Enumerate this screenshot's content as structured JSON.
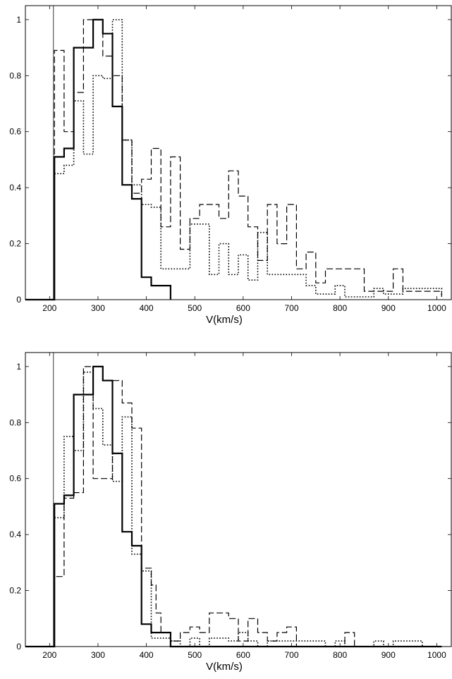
{
  "chart_data": [
    {
      "type": "line",
      "step": true,
      "xlabel": "V(km/s)",
      "ylabel": "",
      "xlim": [
        150,
        1030
      ],
      "ylim": [
        0,
        1.05
      ],
      "xticks": [
        200,
        300,
        400,
        500,
        600,
        700,
        800,
        900,
        1000
      ],
      "xtick_labels": [
        "200",
        "300",
        "400",
        "500",
        "600",
        "700",
        "800",
        "900",
        "1000"
      ],
      "yticks": [
        0,
        0.2,
        0.4,
        0.6,
        0.8,
        1
      ],
      "ytick_labels": [
        "0",
        "0.2",
        "0.4",
        "0.6",
        "0.8",
        "1"
      ],
      "vertical_line_x": 208,
      "grid": false,
      "series": [
        {
          "style": "solid",
          "x": [
            150,
            210,
            210,
            230,
            250,
            290,
            310,
            330,
            350,
            370,
            390,
            410,
            450
          ],
          "y": [
            0,
            0,
            0.51,
            0.54,
            0.9,
            1.0,
            0.95,
            0.69,
            0.41,
            0.36,
            0.08,
            0.05,
            0
          ]
        },
        {
          "style": "dashed",
          "x": [
            150,
            210,
            210,
            230,
            250,
            270,
            310,
            330,
            350,
            370,
            390,
            410,
            430,
            450,
            470,
            490,
            510,
            550,
            570,
            590,
            610,
            630,
            650,
            670,
            690,
            710,
            730,
            750,
            770,
            850,
            910,
            930,
            1010
          ],
          "y": [
            0,
            0,
            0.89,
            0.6,
            0.74,
            1.0,
            0.87,
            0.8,
            0.57,
            0.38,
            0.43,
            0.54,
            0.26,
            0.51,
            0.18,
            0.29,
            0.34,
            0.29,
            0.46,
            0.37,
            0.26,
            0.14,
            0.34,
            0.2,
            0.34,
            0.11,
            0.17,
            0.06,
            0.11,
            0.03,
            0.11,
            0.03,
            0.01
          ]
        },
        {
          "style": "dotted",
          "x": [
            150,
            210,
            210,
            230,
            250,
            270,
            290,
            310,
            330,
            350,
            370,
            390,
            410,
            430,
            490,
            530,
            550,
            570,
            590,
            610,
            630,
            650,
            730,
            750,
            790,
            810,
            870,
            890,
            930,
            1010
          ],
          "y": [
            0,
            0,
            0.45,
            0.48,
            0.71,
            0.52,
            0.8,
            0.79,
            1.0,
            0.57,
            0.41,
            0.34,
            0.33,
            0.11,
            0.27,
            0.09,
            0.2,
            0.09,
            0.16,
            0.07,
            0.24,
            0.09,
            0.05,
            0.02,
            0.05,
            0.01,
            0.04,
            0.02,
            0.04,
            0.01
          ]
        }
      ]
    },
    {
      "type": "line",
      "step": true,
      "xlabel": "V(km/s)",
      "ylabel": "",
      "xlim": [
        150,
        1030
      ],
      "ylim": [
        0,
        1.05
      ],
      "xticks": [
        200,
        300,
        400,
        500,
        600,
        700,
        800,
        900,
        1000
      ],
      "xtick_labels": [
        "200",
        "300",
        "400",
        "500",
        "600",
        "700",
        "800",
        "900",
        "1000"
      ],
      "yticks": [
        0,
        0.2,
        0.4,
        0.6,
        0.8,
        1
      ],
      "ytick_labels": [
        "0",
        "0.2",
        "0.4",
        "0.6",
        "0.8",
        "1"
      ],
      "vertical_line_x": 208,
      "grid": false,
      "series": [
        {
          "style": "solid",
          "x": [
            150,
            210,
            210,
            230,
            250,
            290,
            310,
            330,
            350,
            370,
            390,
            410,
            450,
            1010
          ],
          "y": [
            0,
            0,
            0.51,
            0.54,
            0.9,
            1.0,
            0.95,
            0.69,
            0.41,
            0.36,
            0.08,
            0.05,
            0,
            0
          ]
        },
        {
          "style": "dashed",
          "x": [
            150,
            210,
            210,
            230,
            250,
            270,
            290,
            330,
            350,
            370,
            390,
            410,
            420,
            430,
            450,
            470,
            490,
            510,
            530,
            570,
            590,
            610,
            630,
            650,
            670,
            690,
            710,
            730,
            790,
            810,
            830,
            1010
          ],
          "y": [
            0,
            0,
            0.25,
            0.53,
            0.55,
            1.0,
            0.6,
            0.95,
            0.87,
            0.78,
            0.28,
            0.22,
            0.12,
            0.05,
            0.02,
            0.05,
            0.07,
            0.05,
            0.12,
            0.1,
            0.02,
            0.1,
            0.05,
            0.02,
            0.05,
            0.07,
            0.0,
            0.0,
            0.0,
            0.05,
            0.0,
            0.0
          ]
        },
        {
          "style": "dotted",
          "x": [
            150,
            210,
            210,
            230,
            250,
            270,
            290,
            310,
            330,
            350,
            370,
            390,
            410,
            430,
            450,
            470,
            490,
            510,
            530,
            570,
            590,
            610,
            630,
            650,
            690,
            770,
            790,
            810,
            850,
            870,
            890,
            910,
            970,
            1010
          ],
          "y": [
            0,
            0,
            0.46,
            0.75,
            0.7,
            0.98,
            0.85,
            0.72,
            0.59,
            0.82,
            0.33,
            0.27,
            0.03,
            0.03,
            0.02,
            0.0,
            0.03,
            0.0,
            0.03,
            0.02,
            0.05,
            0.02,
            0.0,
            0.02,
            0.02,
            0.0,
            0.02,
            0.0,
            0.0,
            0.02,
            0.0,
            0.02,
            0.0,
            0.0
          ]
        }
      ]
    }
  ]
}
